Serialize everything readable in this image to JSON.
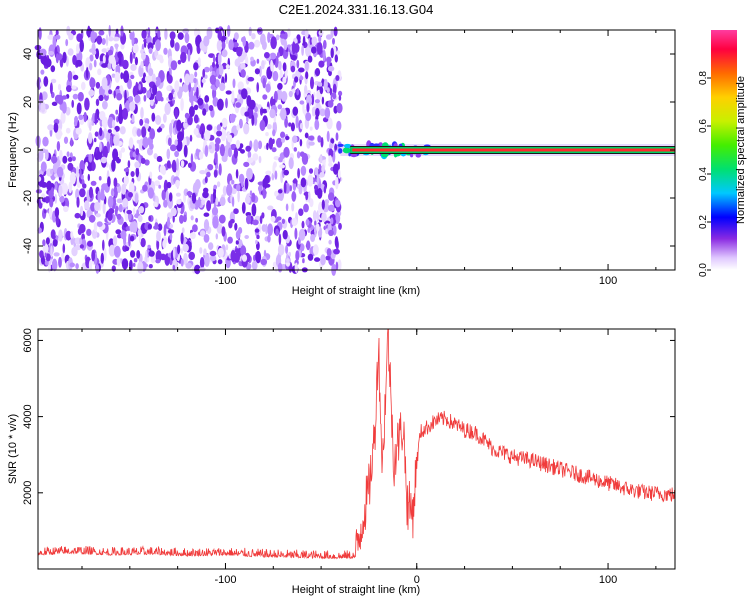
{
  "title": "C2E1.2024.331.16.13.G04",
  "chart_data": [
    {
      "type": "heatmap",
      "xlabel": "Height of straight line (km)",
      "ylabel": "Frequency (Hz)",
      "xlim": [
        -198,
        135
      ],
      "ylim": [
        -50,
        50
      ],
      "x_ticks": [
        -100,
        100
      ],
      "x_minor": [
        -175,
        -150,
        -125,
        -75,
        -50,
        -25,
        0,
        25,
        50,
        75,
        125
      ],
      "y_ticks": [
        -40,
        -20,
        0,
        20,
        40
      ],
      "noise_region_x": [
        -198,
        -40
      ],
      "carrier_start_x": -40,
      "carrier_frequency": 0,
      "colorbar": {
        "label": "Normalized spectral amplitude",
        "range": [
          0,
          1
        ],
        "ticks": [
          0.0,
          0.2,
          0.4,
          0.6,
          0.8
        ],
        "tick_labels": [
          "0.0",
          "0.2",
          "0.4",
          "0.6",
          "0.8"
        ]
      }
    },
    {
      "type": "line",
      "xlabel": "Height of straight line (km)",
      "ylabel": "SNR (10 * v/v)",
      "xlim": [
        -198,
        135
      ],
      "ylim": [
        0,
        6300
      ],
      "x_ticks": [
        -100,
        0,
        100
      ],
      "x_tick_labels": [
        "-100",
        "0",
        "100"
      ],
      "y_ticks": [
        2000,
        4000,
        6000
      ],
      "color": "#f03c3c",
      "series": [
        {
          "x": [
            -198,
            -180,
            -160,
            -140,
            -120,
            -100,
            -80,
            -60,
            -40,
            -32,
            -28,
            -25,
            -22,
            -20,
            -18,
            -15,
            -12,
            -10,
            -7,
            -5,
            -2,
            0,
            2,
            5,
            10,
            15,
            20,
            25,
            30,
            35,
            40,
            50,
            60,
            70,
            80,
            90,
            100,
            110,
            120,
            135
          ],
          "values": [
            400,
            450,
            400,
            420,
            380,
            400,
            350,
            330,
            310,
            320,
            1400,
            2100,
            3500,
            6000,
            2600,
            6200,
            2800,
            3300,
            3800,
            1700,
            1500,
            2800,
            3600,
            3700,
            3900,
            3950,
            3800,
            3650,
            3600,
            3400,
            3150,
            2950,
            2850,
            2700,
            2550,
            2400,
            2250,
            2100,
            2000,
            1950
          ]
        }
      ]
    }
  ]
}
